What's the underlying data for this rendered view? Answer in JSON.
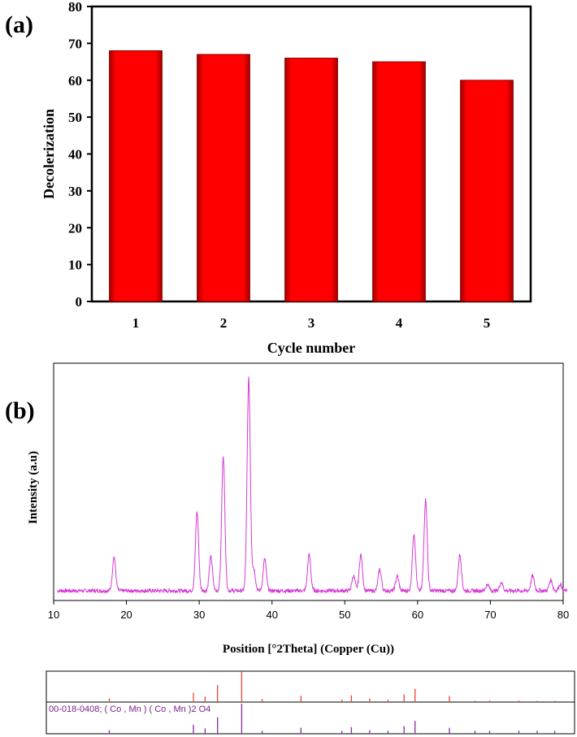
{
  "chart_data": [
    {
      "panel": "(a)",
      "type": "bar",
      "categories": [
        "1",
        "2",
        "3",
        "4",
        "5"
      ],
      "values": [
        68,
        67,
        66,
        65,
        60
      ],
      "xlabel": "Cycle number",
      "ylabel": "Decolerization",
      "ylim": [
        0,
        80
      ],
      "yticks": [
        0,
        10,
        20,
        30,
        40,
        50,
        60,
        70,
        80
      ],
      "bar_color": "#ff0000",
      "grid": false
    },
    {
      "panel": "(b)",
      "type": "line",
      "xlabel": "Position [°2Theta] (Copper (Cu))",
      "ylabel": "Intensity (a.u)",
      "xlim": [
        10,
        80
      ],
      "xticks": [
        10,
        20,
        30,
        40,
        50,
        60,
        70,
        80
      ],
      "line_color": "#d63ad6",
      "peaks": [
        {
          "x": 18.3,
          "y": 0.16
        },
        {
          "x": 29.7,
          "y": 0.37
        },
        {
          "x": 31.6,
          "y": 0.16
        },
        {
          "x": 33.3,
          "y": 0.64
        },
        {
          "x": 36.8,
          "y": 1.0
        },
        {
          "x": 37.5,
          "y": 0.1
        },
        {
          "x": 39.0,
          "y": 0.15
        },
        {
          "x": 45.1,
          "y": 0.17
        },
        {
          "x": 51.2,
          "y": 0.07
        },
        {
          "x": 52.2,
          "y": 0.17
        },
        {
          "x": 54.8,
          "y": 0.1
        },
        {
          "x": 57.2,
          "y": 0.07
        },
        {
          "x": 59.5,
          "y": 0.27
        },
        {
          "x": 61.1,
          "y": 0.43
        },
        {
          "x": 65.8,
          "y": 0.17
        },
        {
          "x": 69.6,
          "y": 0.03
        },
        {
          "x": 71.5,
          "y": 0.04
        },
        {
          "x": 75.8,
          "y": 0.07
        },
        {
          "x": 78.3,
          "y": 0.05
        },
        {
          "x": 79.6,
          "y": 0.03
        }
      ],
      "reference": {
        "label": "00-018-0408; ( Co , Mn ) ( Co , Mn )2 O4",
        "colors": {
          "measured": "#ee4433",
          "reference": "#8a2aa0"
        },
        "lines": [
          {
            "x": 17.5,
            "h": 0.12
          },
          {
            "x": 29.0,
            "h": 0.3
          },
          {
            "x": 30.6,
            "h": 0.18
          },
          {
            "x": 32.3,
            "h": 0.55
          },
          {
            "x": 35.6,
            "h": 1.0
          },
          {
            "x": 38.4,
            "h": 0.1
          },
          {
            "x": 43.7,
            "h": 0.2
          },
          {
            "x": 49.3,
            "h": 0.08
          },
          {
            "x": 50.6,
            "h": 0.22
          },
          {
            "x": 53.1,
            "h": 0.12
          },
          {
            "x": 55.6,
            "h": 0.08
          },
          {
            "x": 57.8,
            "h": 0.25
          },
          {
            "x": 59.3,
            "h": 0.43
          },
          {
            "x": 64.0,
            "h": 0.2
          },
          {
            "x": 67.5,
            "h": 0.04
          },
          {
            "x": 69.5,
            "h": 0.05
          },
          {
            "x": 73.5,
            "h": 0.05
          },
          {
            "x": 76.0,
            "h": 0.04
          },
          {
            "x": 78.4,
            "h": 0.04
          }
        ]
      }
    }
  ],
  "labels": {
    "panel_a": "(a)",
    "panel_b": "(b)"
  }
}
